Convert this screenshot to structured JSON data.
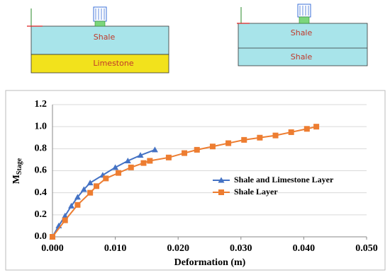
{
  "diagrams": [
    {
      "labels": [
        "Shale",
        "Limestone"
      ]
    },
    {
      "labels": [
        "Shale",
        "Shale"
      ]
    }
  ],
  "chart_data": {
    "type": "line",
    "x_label": "Deformation (m)",
    "y_label": "M",
    "y_label_subscript": "Stage",
    "xlim": [
      0,
      0.05
    ],
    "xticks": [
      {
        "value": 0,
        "label": "0.000"
      },
      {
        "value": 0.01,
        "label": "0.010"
      },
      {
        "value": 0.02,
        "label": "0.020"
      },
      {
        "value": 0.03,
        "label": "0.030"
      },
      {
        "value": 0.04,
        "label": "0.040"
      },
      {
        "value": 0.05,
        "label": "0.050"
      }
    ],
    "ylim": [
      0,
      1.2
    ],
    "yticks": [
      {
        "value": 0,
        "label": "0.0"
      },
      {
        "value": 0.2,
        "label": "0.2"
      },
      {
        "value": 0.4,
        "label": "0.4"
      },
      {
        "value": 0.6,
        "label": "0.6"
      },
      {
        "value": 0.8,
        "label": "0.8"
      },
      {
        "value": 1,
        "label": "1.0"
      },
      {
        "value": 1.2,
        "label": "1.2"
      }
    ],
    "grid": true,
    "series": [
      {
        "name": "Shale and Limestone Layer",
        "color": "#4472c4",
        "marker": "triangle",
        "x": [
          0,
          0.001,
          0.002,
          0.003,
          0.004,
          0.005,
          0.006,
          0.008,
          0.01,
          0.012,
          0.014,
          0.0163
        ],
        "values": [
          0,
          0.1,
          0.19,
          0.28,
          0.36,
          0.43,
          0.49,
          0.56,
          0.63,
          0.69,
          0.74,
          0.79
        ]
      },
      {
        "name": "Shale Layer",
        "color": "#ed7d31",
        "marker": "square",
        "x": [
          0,
          0.002,
          0.004,
          0.006,
          0.007,
          0.0085,
          0.0105,
          0.0125,
          0.0145,
          0.0155,
          0.0185,
          0.021,
          0.023,
          0.0255,
          0.028,
          0.0305,
          0.033,
          0.0355,
          0.038,
          0.0405,
          0.042
        ],
        "values": [
          0,
          0.15,
          0.29,
          0.4,
          0.46,
          0.53,
          0.58,
          0.63,
          0.67,
          0.69,
          0.72,
          0.76,
          0.79,
          0.82,
          0.85,
          0.88,
          0.9,
          0.92,
          0.95,
          0.98,
          1.0
        ]
      }
    ]
  }
}
